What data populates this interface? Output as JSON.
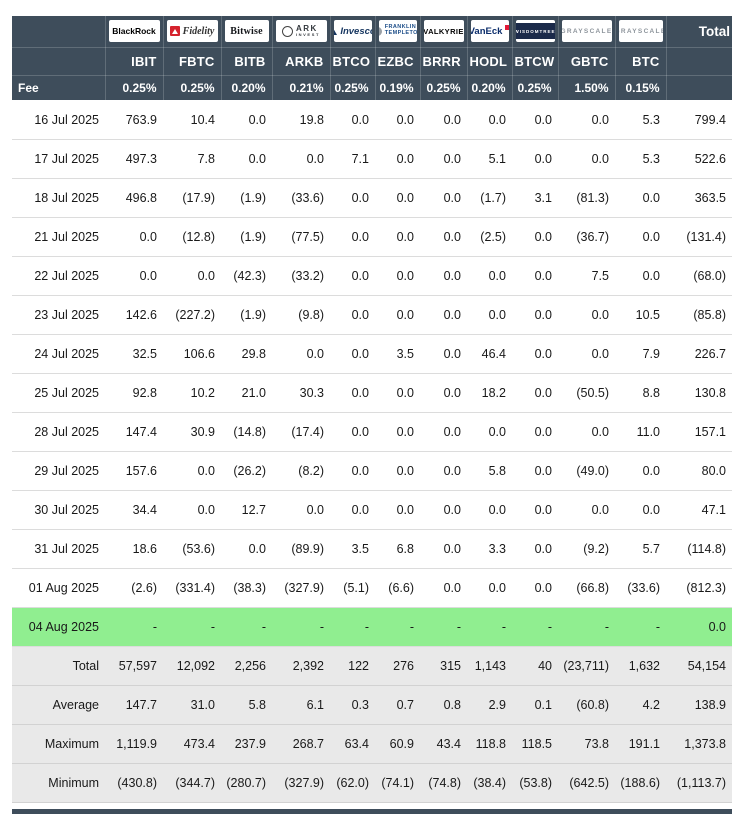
{
  "colors": {
    "header_bg": "#3e4d5b",
    "negative_value": "#e60000",
    "highlight_row_bg": "#90ee90",
    "summary_row_bg": "#e9e9e9"
  },
  "chart_data": {
    "type": "table",
    "fee_label": "Fee",
    "total_label": "Total",
    "providers": [
      {
        "id": "blackrock",
        "name": "BlackRock",
        "color": "#000000"
      },
      {
        "id": "fidelity",
        "name": "Fidelity",
        "color": "#333333",
        "icon_color": "#d5232e"
      },
      {
        "id": "bitwise",
        "name": "Bitwise",
        "color": "#14161a"
      },
      {
        "id": "ark",
        "name": "ARK",
        "line2": "INVEST",
        "color": "#33383d"
      },
      {
        "id": "invesco",
        "name": "Invesco",
        "color": "#15355f",
        "icon_color": "#15355f"
      },
      {
        "id": "franklin",
        "name": "FRANKLIN",
        "line2": "TEMPLETON",
        "color": "#1d4e89",
        "icon_color": "#9aa0a6"
      },
      {
        "id": "valkyrie",
        "name": "VALKYRIE",
        "color": "#000000"
      },
      {
        "id": "vaneck",
        "name": "VanEck",
        "color": "#0b2d6b",
        "icon_color": "#e31837"
      },
      {
        "id": "wisdomtree",
        "name": "WISDOMTREE",
        "color": "#ffffff",
        "box_color": "#1b2a4a"
      },
      {
        "id": "grayscale-gbtc",
        "name": "GRAYSCALE",
        "color": "#8e959c"
      },
      {
        "id": "grayscale-btc",
        "name": "GRAYSCALE",
        "color": "#8e959c"
      }
    ],
    "tickers": [
      "IBIT",
      "FBTC",
      "BITB",
      "ARKB",
      "BTCO",
      "EZBC",
      "BRRR",
      "HODL",
      "BTCW",
      "GBTC",
      "BTC"
    ],
    "fees": [
      "0.25%",
      "0.25%",
      "0.20%",
      "0.21%",
      "0.25%",
      "0.19%",
      "0.25%",
      "0.20%",
      "0.25%",
      "1.50%",
      "0.15%"
    ],
    "rows": [
      {
        "date": "16 Jul 2025",
        "values": [
          763.9,
          10.4,
          0,
          19.8,
          0,
          0,
          0,
          0,
          0,
          0,
          5.3
        ],
        "total": 799.4
      },
      {
        "date": "17 Jul 2025",
        "values": [
          497.3,
          7.8,
          0,
          0,
          7.1,
          0,
          0,
          5.1,
          0,
          0,
          5.3
        ],
        "total": 522.6
      },
      {
        "date": "18 Jul 2025",
        "values": [
          496.8,
          -17.9,
          -1.9,
          -33.6,
          0,
          0,
          0,
          -1.7,
          3.1,
          -81.3,
          0
        ],
        "total": 363.5
      },
      {
        "date": "21 Jul 2025",
        "values": [
          0,
          -12.8,
          -1.9,
          -77.5,
          0,
          0,
          0,
          -2.5,
          0,
          -36.7,
          0
        ],
        "total": -131.4
      },
      {
        "date": "22 Jul 2025",
        "values": [
          0,
          0,
          -42.3,
          -33.2,
          0,
          0,
          0,
          0,
          0,
          7.5,
          0
        ],
        "total": -68.0
      },
      {
        "date": "23 Jul 2025",
        "values": [
          142.6,
          -227.2,
          -1.9,
          -9.8,
          0,
          0,
          0,
          0,
          0,
          0,
          10.5
        ],
        "total": -85.8
      },
      {
        "date": "24 Jul 2025",
        "values": [
          32.5,
          106.6,
          29.8,
          0,
          0,
          3.5,
          0,
          46.4,
          0,
          0,
          7.9
        ],
        "total": 226.7
      },
      {
        "date": "25 Jul 2025",
        "values": [
          92.8,
          10.2,
          21.0,
          30.3,
          0,
          0,
          0,
          18.2,
          0,
          -50.5,
          8.8
        ],
        "total": 130.8
      },
      {
        "date": "28 Jul 2025",
        "values": [
          147.4,
          30.9,
          -14.8,
          -17.4,
          0,
          0,
          0,
          0,
          0,
          0,
          11.0
        ],
        "total": 157.1
      },
      {
        "date": "29 Jul 2025",
        "values": [
          157.6,
          0,
          -26.2,
          -8.2,
          0,
          0,
          0,
          5.8,
          0,
          -49.0,
          0
        ],
        "total": 80.0
      },
      {
        "date": "30 Jul 2025",
        "values": [
          34.4,
          0,
          12.7,
          0,
          0,
          0,
          0,
          0,
          0,
          0,
          0
        ],
        "total": 47.1
      },
      {
        "date": "31 Jul 2025",
        "values": [
          18.6,
          -53.6,
          0,
          -89.9,
          3.5,
          6.8,
          0,
          3.3,
          0,
          -9.2,
          5.7
        ],
        "total": -114.8
      },
      {
        "date": "01 Aug 2025",
        "values": [
          -2.6,
          -331.4,
          -38.3,
          -327.9,
          -5.1,
          -6.6,
          0,
          0,
          0,
          -66.8,
          -33.6
        ],
        "total": -812.3
      },
      {
        "date": "04 Aug 2025",
        "values": [
          null,
          null,
          null,
          null,
          null,
          null,
          null,
          null,
          null,
          null,
          null
        ],
        "total": 0,
        "highlight": true
      }
    ],
    "summary_rows": [
      {
        "label": "Total",
        "decimals": 0,
        "values": [
          57597,
          12092,
          2256,
          2392,
          122,
          276,
          315,
          1143,
          40,
          -23711,
          1632
        ],
        "total": 54154
      },
      {
        "label": "Average",
        "decimals": 1,
        "values": [
          147.7,
          31.0,
          5.8,
          6.1,
          0.3,
          0.7,
          0.8,
          2.9,
          0.1,
          -60.8,
          4.2
        ],
        "total": 138.9
      },
      {
        "label": "Maximum",
        "decimals": 1,
        "values": [
          1119.9,
          473.4,
          237.9,
          268.7,
          63.4,
          60.9,
          43.4,
          118.8,
          118.5,
          73.8,
          191.1
        ],
        "total": 1373.8
      },
      {
        "label": "Minimum",
        "decimals": 1,
        "values": [
          -430.8,
          -344.7,
          -280.7,
          -327.9,
          -62.0,
          -74.1,
          -74.8,
          -38.4,
          -53.8,
          -642.5,
          -188.6
        ],
        "total": -1113.7
      }
    ]
  }
}
